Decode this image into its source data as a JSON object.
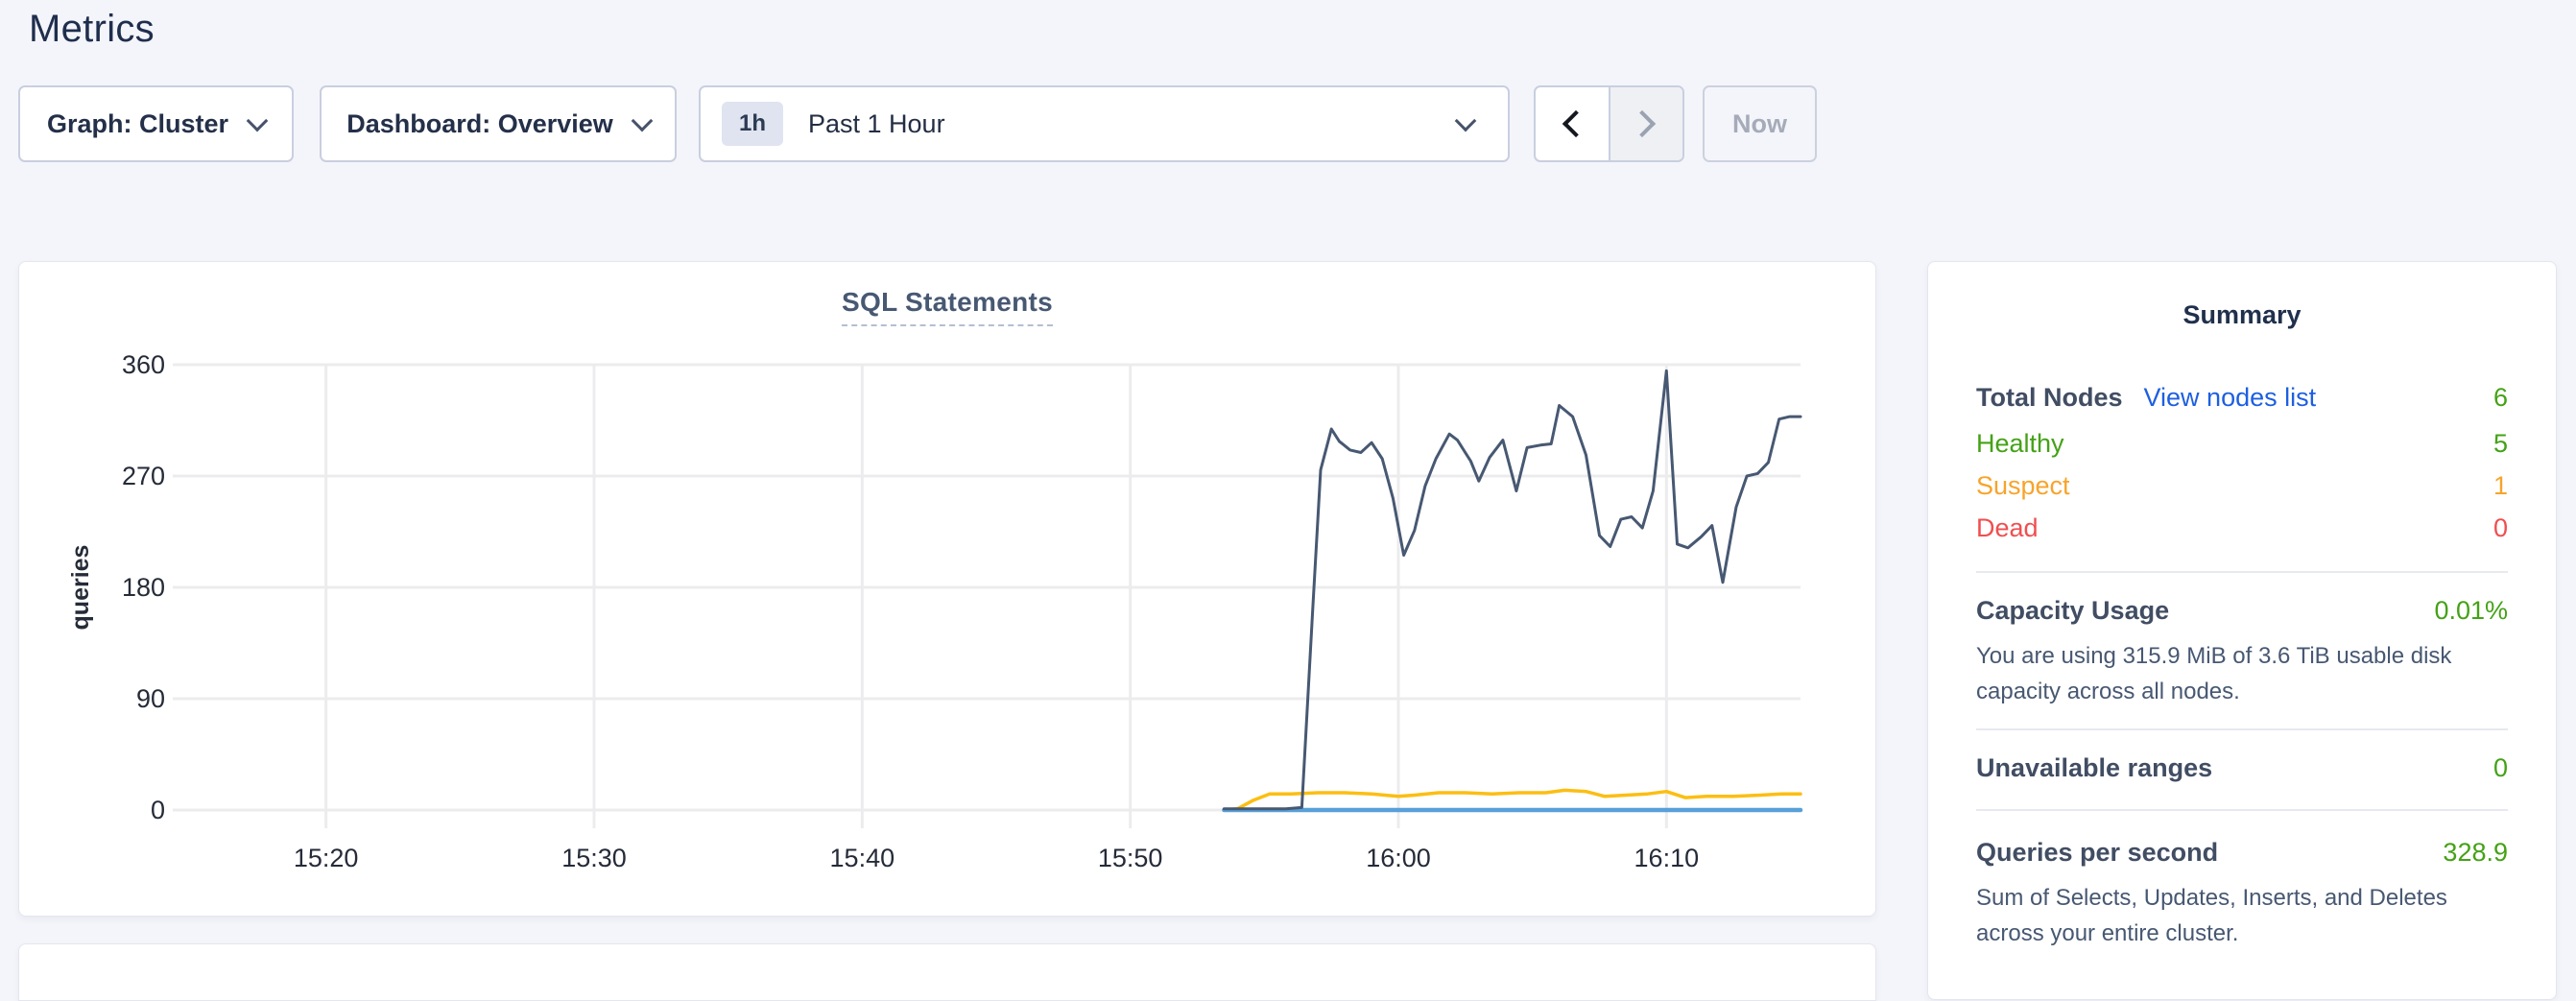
{
  "page": {
    "title": "Metrics"
  },
  "theme": {
    "page_bg": "#f4f5fa",
    "green": "#44a216",
    "orange": "#f7a42b",
    "red": "#f04e50",
    "link": "#1d5fe0"
  },
  "toolbar": {
    "graph_dropdown": "Graph: Cluster",
    "dashboard_dropdown": "Dashboard: Overview",
    "time_select": {
      "badge": "1h",
      "value": "Past 1 Hour"
    },
    "now_button": "Now"
  },
  "chart_data": {
    "type": "line",
    "title": "SQL Statements",
    "ylabel": "queries",
    "xlabel": "",
    "grid": true,
    "legend_position": "none",
    "x_domain_minutes": [
      0,
      60
    ],
    "x_domain_time": [
      "15:15",
      "16:15"
    ],
    "ylim": [
      0,
      360
    ],
    "y_ticks": [
      0,
      90,
      180,
      270,
      360
    ],
    "x_ticks": [
      {
        "label": "15:20",
        "min": 5
      },
      {
        "label": "15:30",
        "min": 15
      },
      {
        "label": "15:40",
        "min": 25
      },
      {
        "label": "15:50",
        "min": 35
      },
      {
        "label": "16:00",
        "min": 45
      },
      {
        "label": "16:10",
        "min": 55
      }
    ],
    "series": [
      {
        "name": "yellow",
        "color": "#fcbe12",
        "stroke_width": 3.5,
        "points": [
          [
            38.5,
            0
          ],
          [
            39.0,
            1
          ],
          [
            39.6,
            8
          ],
          [
            40.2,
            13
          ],
          [
            41.0,
            13
          ],
          [
            42.0,
            14
          ],
          [
            43.0,
            14
          ],
          [
            44.0,
            13
          ],
          [
            45.0,
            11
          ],
          [
            45.6,
            12
          ],
          [
            46.5,
            14
          ],
          [
            47.5,
            14
          ],
          [
            48.5,
            13
          ],
          [
            49.5,
            14
          ],
          [
            50.5,
            14
          ],
          [
            51.2,
            16
          ],
          [
            52.0,
            15
          ],
          [
            52.7,
            11
          ],
          [
            53.5,
            12
          ],
          [
            54.3,
            13
          ],
          [
            55.0,
            15
          ],
          [
            55.7,
            10
          ],
          [
            56.5,
            11
          ],
          [
            57.5,
            11
          ],
          [
            58.5,
            12
          ],
          [
            59.3,
            13
          ],
          [
            60.0,
            13
          ]
        ]
      },
      {
        "name": "blue",
        "color": "#57a0d8",
        "stroke_width": 4.5,
        "points": [
          [
            38.5,
            0
          ],
          [
            60.0,
            0
          ]
        ]
      },
      {
        "name": "navy",
        "color": "#475872",
        "stroke_width": 3,
        "points": [
          [
            38.5,
            1
          ],
          [
            39.2,
            1
          ],
          [
            40.0,
            1
          ],
          [
            40.8,
            1
          ],
          [
            41.4,
            2
          ],
          [
            41.8,
            160
          ],
          [
            42.1,
            275
          ],
          [
            42.5,
            308
          ],
          [
            42.8,
            298
          ],
          [
            43.2,
            291
          ],
          [
            43.6,
            289
          ],
          [
            44.0,
            297
          ],
          [
            44.4,
            284
          ],
          [
            44.8,
            252
          ],
          [
            45.2,
            206
          ],
          [
            45.6,
            226
          ],
          [
            46.0,
            262
          ],
          [
            46.4,
            284
          ],
          [
            46.9,
            304
          ],
          [
            47.2,
            299
          ],
          [
            47.7,
            282
          ],
          [
            48.0,
            266
          ],
          [
            48.4,
            285
          ],
          [
            48.9,
            299
          ],
          [
            49.4,
            258
          ],
          [
            49.8,
            293
          ],
          [
            50.3,
            295
          ],
          [
            50.7,
            296
          ],
          [
            51.0,
            327
          ],
          [
            51.5,
            318
          ],
          [
            52.0,
            287
          ],
          [
            52.5,
            222
          ],
          [
            52.9,
            213
          ],
          [
            53.3,
            235
          ],
          [
            53.7,
            237
          ],
          [
            54.1,
            228
          ],
          [
            54.5,
            258
          ],
          [
            55.0,
            355
          ],
          [
            55.4,
            215
          ],
          [
            55.8,
            212
          ],
          [
            56.3,
            221
          ],
          [
            56.7,
            230
          ],
          [
            57.1,
            184
          ],
          [
            57.6,
            245
          ],
          [
            58.0,
            270
          ],
          [
            58.4,
            272
          ],
          [
            58.8,
            281
          ],
          [
            59.2,
            316
          ],
          [
            59.6,
            318
          ],
          [
            60.0,
            318
          ]
        ]
      }
    ]
  },
  "summary": {
    "title": "Summary",
    "nodes": {
      "label": "Total Nodes",
      "link": "View nodes list",
      "value": "6",
      "rows": [
        {
          "label": "Healthy",
          "value": "5"
        },
        {
          "label": "Suspect",
          "value": "1"
        },
        {
          "label": "Dead",
          "value": "0"
        }
      ]
    },
    "capacity": {
      "label": "Capacity Usage",
      "value": "0.01%",
      "description": "You are using 315.9 MiB of 3.6 TiB usable disk capacity across all nodes."
    },
    "unavailable": {
      "label": "Unavailable ranges",
      "value": "0"
    },
    "qps": {
      "label": "Queries per second",
      "value": "328.9",
      "description": "Sum of Selects, Updates, Inserts, and Deletes across your entire cluster."
    }
  }
}
